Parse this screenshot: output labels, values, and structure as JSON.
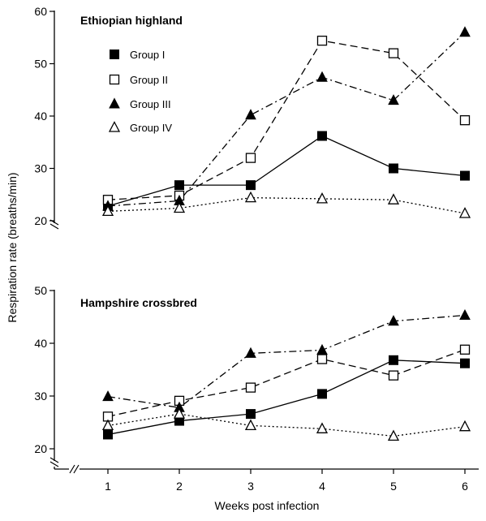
{
  "chart_data": {
    "type": "line",
    "ylabel": "Respiration rate (breaths/min)",
    "xlabel": "Weeks post infection",
    "x": [
      1,
      2,
      3,
      4,
      5,
      6
    ],
    "xlim": [
      0.5,
      6.2
    ],
    "xticks": [
      "1",
      "2",
      "3",
      "4",
      "5",
      "6"
    ],
    "legend_position": "inside top-left of upper panel",
    "grid": false,
    "panels": [
      {
        "title": "Ethiopian highland",
        "ylim": [
          20,
          60
        ],
        "yticks": [
          20,
          30,
          40,
          50,
          60
        ],
        "series": [
          {
            "name": "Group I",
            "marker": "filled-square",
            "line": "solid",
            "values": [
              22.8,
              26.8,
              26.8,
              36.2,
              30.0,
              28.6
            ]
          },
          {
            "name": "Group II",
            "marker": "open-square",
            "line": "dashed",
            "values": [
              24.0,
              24.8,
              32.0,
              54.4,
              52.0,
              39.2
            ]
          },
          {
            "name": "Group III",
            "marker": "filled-triangle",
            "line": "dash-dot",
            "values": [
              22.8,
              23.8,
              40.2,
              47.4,
              43.0,
              56.0
            ]
          },
          {
            "name": "Group IV",
            "marker": "open-triangle",
            "line": "dotted",
            "values": [
              21.8,
              22.4,
              24.4,
              24.2,
              24.0,
              21.4
            ]
          }
        ]
      },
      {
        "title": "Hampshire crossbred",
        "ylim": [
          20,
          50
        ],
        "yticks": [
          20,
          30,
          40,
          50
        ],
        "series": [
          {
            "name": "Group I",
            "marker": "filled-square",
            "line": "solid",
            "values": [
              22.7,
              25.3,
              26.6,
              30.4,
              36.8,
              36.2
            ]
          },
          {
            "name": "Group II",
            "marker": "open-square",
            "line": "dashed",
            "values": [
              26.1,
              29.1,
              31.6,
              37.0,
              33.9,
              38.8
            ]
          },
          {
            "name": "Group III",
            "marker": "filled-triangle",
            "line": "dash-dot",
            "values": [
              29.9,
              27.8,
              38.1,
              38.7,
              44.2,
              45.3
            ]
          },
          {
            "name": "Group IV",
            "marker": "open-triangle",
            "line": "dotted",
            "values": [
              24.4,
              26.6,
              24.4,
              23.8,
              22.4,
              24.2
            ]
          }
        ]
      }
    ]
  }
}
